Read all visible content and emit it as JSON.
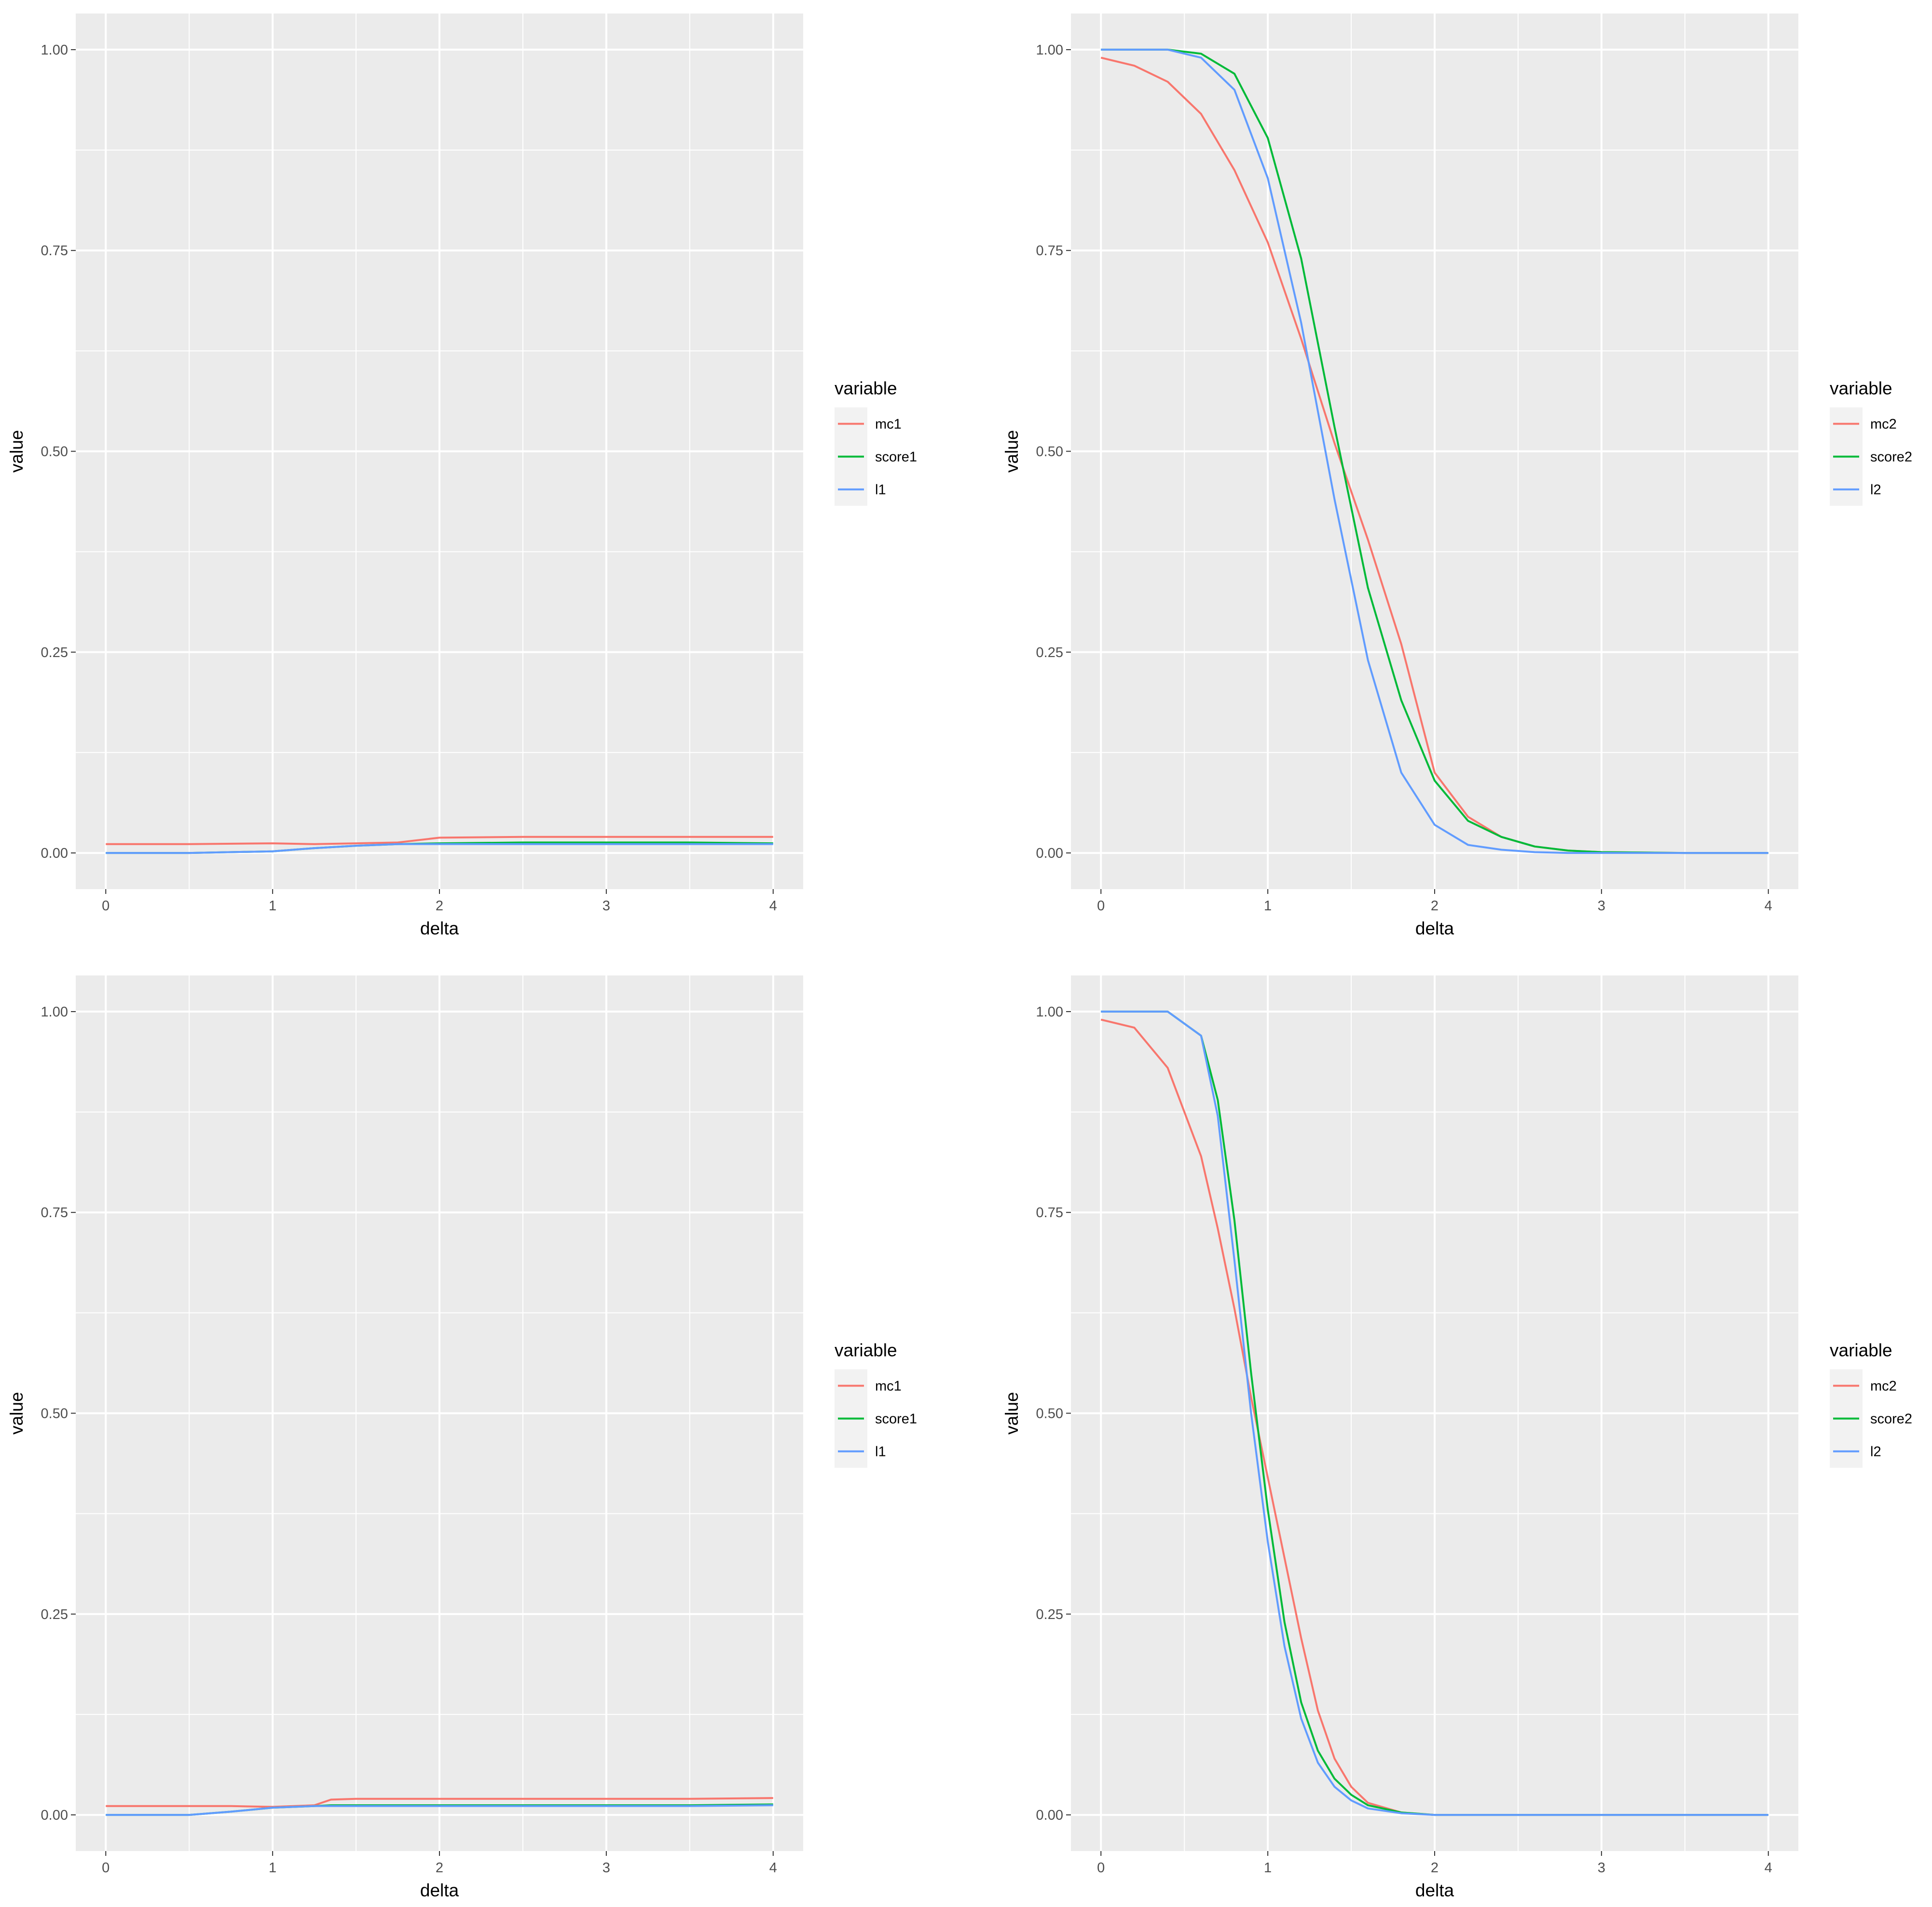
{
  "chart_data": [
    {
      "type": "line",
      "panel": "top-left",
      "xlabel": "delta",
      "ylabel": "value",
      "xlim": [
        0,
        4
      ],
      "ylim": [
        0,
        1
      ],
      "xticks": [
        "0",
        "1",
        "2",
        "3",
        "4"
      ],
      "yticks": [
        "0.00",
        "0.25",
        "0.50",
        "0.75",
        "1.00"
      ],
      "grid": true,
      "legend": {
        "title": "variable",
        "placement": "right"
      },
      "x": [
        0,
        0.5,
        1,
        1.25,
        1.5,
        1.75,
        2,
        2.5,
        3,
        3.5,
        4
      ],
      "series": [
        {
          "name": "mc1",
          "color": "#F8766D",
          "values": [
            0.011,
            0.011,
            0.012,
            0.011,
            0.012,
            0.013,
            0.019,
            0.02,
            0.02,
            0.02,
            0.02
          ]
        },
        {
          "name": "score1",
          "color": "#00BA38",
          "values": [
            0.0,
            0.0,
            0.002,
            0.006,
            0.009,
            0.011,
            0.012,
            0.013,
            0.013,
            0.013,
            0.012
          ]
        },
        {
          "name": "l1",
          "color": "#619CFF",
          "values": [
            0.0,
            0.0,
            0.002,
            0.006,
            0.009,
            0.011,
            0.011,
            0.011,
            0.011,
            0.011,
            0.011
          ]
        }
      ]
    },
    {
      "type": "line",
      "panel": "top-right",
      "xlabel": "delta",
      "ylabel": "value",
      "xlim": [
        0,
        4
      ],
      "ylim": [
        0,
        1
      ],
      "xticks": [
        "0",
        "1",
        "2",
        "3",
        "4"
      ],
      "yticks": [
        "0.00",
        "0.25",
        "0.50",
        "0.75",
        "1.00"
      ],
      "grid": true,
      "legend": {
        "title": "variable",
        "placement": "right"
      },
      "x": [
        0,
        0.2,
        0.4,
        0.6,
        0.8,
        1.0,
        1.2,
        1.4,
        1.6,
        1.8,
        2.0,
        2.2,
        2.4,
        2.6,
        2.8,
        3.0,
        3.5,
        4.0
      ],
      "series": [
        {
          "name": "mc2",
          "color": "#F8766D",
          "values": [
            0.99,
            0.98,
            0.96,
            0.92,
            0.85,
            0.76,
            0.64,
            0.51,
            0.39,
            0.26,
            0.1,
            0.045,
            0.02,
            0.008,
            0.003,
            0.001,
            0.0,
            0.0
          ]
        },
        {
          "name": "score2",
          "color": "#00BA38",
          "values": [
            1.0,
            1.0,
            1.0,
            0.995,
            0.97,
            0.89,
            0.74,
            0.53,
            0.33,
            0.19,
            0.09,
            0.04,
            0.02,
            0.008,
            0.003,
            0.001,
            0.0,
            0.0
          ]
        },
        {
          "name": "l2",
          "color": "#619CFF",
          "values": [
            1.0,
            1.0,
            1.0,
            0.99,
            0.95,
            0.84,
            0.66,
            0.44,
            0.24,
            0.1,
            0.035,
            0.01,
            0.004,
            0.001,
            0.0,
            0.0,
            0.0,
            0.0
          ]
        }
      ]
    },
    {
      "type": "line",
      "panel": "bottom-left",
      "xlabel": "delta",
      "ylabel": "value",
      "xlim": [
        0,
        4
      ],
      "ylim": [
        0,
        1
      ],
      "xticks": [
        "0",
        "1",
        "2",
        "3",
        "4"
      ],
      "yticks": [
        "0.00",
        "0.25",
        "0.50",
        "0.75",
        "1.00"
      ],
      "grid": true,
      "legend": {
        "title": "variable",
        "placement": "right"
      },
      "x": [
        0,
        0.5,
        0.75,
        1,
        1.25,
        1.35,
        1.5,
        2,
        2.5,
        3,
        3.5,
        4
      ],
      "series": [
        {
          "name": "mc1",
          "color": "#F8766D",
          "values": [
            0.011,
            0.011,
            0.011,
            0.01,
            0.012,
            0.019,
            0.02,
            0.02,
            0.02,
            0.02,
            0.02,
            0.021
          ]
        },
        {
          "name": "score1",
          "color": "#00BA38",
          "values": [
            0.0,
            0.0,
            0.004,
            0.009,
            0.011,
            0.012,
            0.012,
            0.012,
            0.012,
            0.012,
            0.012,
            0.013
          ]
        },
        {
          "name": "l1",
          "color": "#619CFF",
          "values": [
            0.0,
            0.0,
            0.004,
            0.009,
            0.011,
            0.011,
            0.011,
            0.011,
            0.011,
            0.011,
            0.011,
            0.012
          ]
        }
      ]
    },
    {
      "type": "line",
      "panel": "bottom-right",
      "xlabel": "delta",
      "ylabel": "value",
      "xlim": [
        0,
        4
      ],
      "ylim": [
        0,
        1
      ],
      "xticks": [
        "0",
        "1",
        "2",
        "3",
        "4"
      ],
      "yticks": [
        "0.00",
        "0.25",
        "0.50",
        "0.75",
        "1.00"
      ],
      "grid": true,
      "legend": {
        "title": "variable",
        "placement": "right"
      },
      "x": [
        0,
        0.2,
        0.4,
        0.6,
        0.7,
        0.8,
        0.9,
        1.0,
        1.1,
        1.2,
        1.3,
        1.4,
        1.5,
        1.6,
        1.8,
        2.0,
        2.5,
        3.0,
        4.0
      ],
      "series": [
        {
          "name": "mc2",
          "color": "#F8766D",
          "values": [
            0.99,
            0.98,
            0.93,
            0.82,
            0.73,
            0.63,
            0.52,
            0.42,
            0.32,
            0.22,
            0.13,
            0.07,
            0.035,
            0.015,
            0.003,
            0.0,
            0.0,
            0.0,
            0.0
          ]
        },
        {
          "name": "score2",
          "color": "#00BA38",
          "values": [
            1.0,
            1.0,
            1.0,
            0.97,
            0.89,
            0.74,
            0.55,
            0.38,
            0.24,
            0.14,
            0.08,
            0.045,
            0.025,
            0.012,
            0.003,
            0.0,
            0.0,
            0.0,
            0.0
          ]
        },
        {
          "name": "l2",
          "color": "#619CFF",
          "values": [
            1.0,
            1.0,
            1.0,
            0.97,
            0.87,
            0.69,
            0.5,
            0.34,
            0.21,
            0.12,
            0.065,
            0.035,
            0.018,
            0.008,
            0.002,
            0.0,
            0.0,
            0.0,
            0.0
          ]
        }
      ]
    }
  ]
}
